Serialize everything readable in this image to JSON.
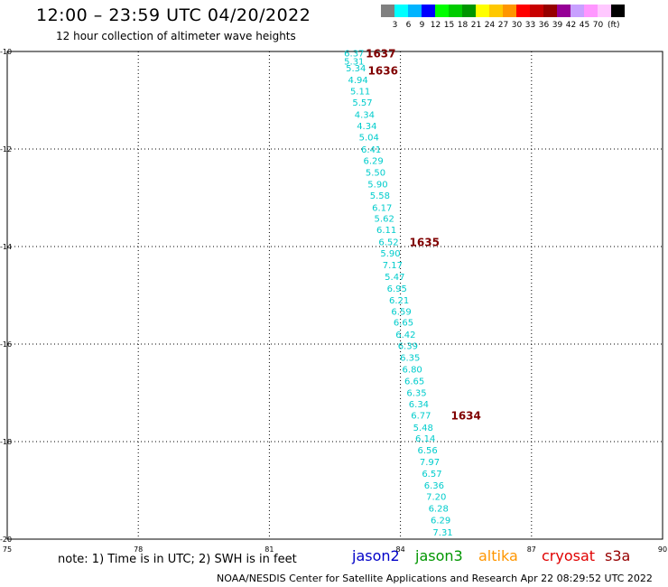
{
  "title": "12:00 – 23:59 UTC 04/20/2022",
  "subtitle": "12 hour collection of altimeter wave heights",
  "legend": {
    "colors": [
      "#808080",
      "#00ffff",
      "#00b4ff",
      "#0000ff",
      "#00ff00",
      "#00cc00",
      "#009600",
      "#ffff00",
      "#ffc800",
      "#ff9600",
      "#ff0000",
      "#c80000",
      "#960000",
      "#960096",
      "#c8a0ff",
      "#ff96ff",
      "#ffc8ff",
      "#000000"
    ],
    "labels": [
      "3",
      "6",
      "9",
      "12",
      "15",
      "18",
      "21",
      "24",
      "27",
      "30",
      "33",
      "36",
      "39",
      "42",
      "45",
      "70"
    ],
    "unit": "(ft)"
  },
  "axes": {
    "lat_labels": [
      "-10",
      "-12",
      "-14",
      "-16",
      "-18",
      "-20"
    ],
    "lon_labels": [
      "75",
      "78",
      "81",
      "84",
      "87",
      "90"
    ]
  },
  "chart_data": {
    "type": "map",
    "lon_range": [
      75,
      90
    ],
    "lat_range": [
      -20,
      -10
    ],
    "grid": true,
    "value_color": "#00cccc",
    "time_color": "#800000",
    "swh_points": [
      {
        "lat": -10.03,
        "lon": 82.94,
        "v": "6.37"
      },
      {
        "lat": -10.19,
        "lon": 82.94,
        "v": "5.31"
      },
      {
        "lat": -10.33,
        "lon": 82.98,
        "v": "5.34"
      },
      {
        "lat": -10.57,
        "lon": 83.03,
        "v": "4.94"
      },
      {
        "lat": -10.81,
        "lon": 83.08,
        "v": "5.11"
      },
      {
        "lat": -11.04,
        "lon": 83.13,
        "v": "5.57"
      },
      {
        "lat": -11.29,
        "lon": 83.18,
        "v": "4.34"
      },
      {
        "lat": -11.52,
        "lon": 83.23,
        "v": "4.34"
      },
      {
        "lat": -11.75,
        "lon": 83.28,
        "v": "5.04"
      },
      {
        "lat": -12.0,
        "lon": 83.33,
        "v": "6.41"
      },
      {
        "lat": -12.23,
        "lon": 83.38,
        "v": "6.29"
      },
      {
        "lat": -12.47,
        "lon": 83.43,
        "v": "5.50"
      },
      {
        "lat": -12.71,
        "lon": 83.48,
        "v": "5.90"
      },
      {
        "lat": -12.94,
        "lon": 83.53,
        "v": "5.58"
      },
      {
        "lat": -13.19,
        "lon": 83.58,
        "v": "6.17"
      },
      {
        "lat": -13.42,
        "lon": 83.63,
        "v": "5.62"
      },
      {
        "lat": -13.65,
        "lon": 83.68,
        "v": "6.11"
      },
      {
        "lat": -13.9,
        "lon": 83.73,
        "v": "6.52"
      },
      {
        "lat": -14.13,
        "lon": 83.77,
        "v": "5.90"
      },
      {
        "lat": -14.37,
        "lon": 83.82,
        "v": "7.17"
      },
      {
        "lat": -14.61,
        "lon": 83.87,
        "v": "5.47"
      },
      {
        "lat": -14.85,
        "lon": 83.92,
        "v": "6.95"
      },
      {
        "lat": -15.09,
        "lon": 83.97,
        "v": "6.21"
      },
      {
        "lat": -15.32,
        "lon": 84.02,
        "v": "6.59"
      },
      {
        "lat": -15.55,
        "lon": 84.07,
        "v": "6.65"
      },
      {
        "lat": -15.8,
        "lon": 84.12,
        "v": "6.42"
      },
      {
        "lat": -16.03,
        "lon": 84.17,
        "v": "6.39"
      },
      {
        "lat": -16.27,
        "lon": 84.22,
        "v": "6.35"
      },
      {
        "lat": -16.51,
        "lon": 84.27,
        "v": "6.80"
      },
      {
        "lat": -16.75,
        "lon": 84.32,
        "v": "6.65"
      },
      {
        "lat": -16.99,
        "lon": 84.37,
        "v": "6.35"
      },
      {
        "lat": -17.22,
        "lon": 84.42,
        "v": "6.34"
      },
      {
        "lat": -17.45,
        "lon": 84.47,
        "v": "6.77"
      },
      {
        "lat": -17.7,
        "lon": 84.52,
        "v": "5.48"
      },
      {
        "lat": -17.93,
        "lon": 84.57,
        "v": "6.14"
      },
      {
        "lat": -18.17,
        "lon": 84.62,
        "v": "6.56"
      },
      {
        "lat": -18.41,
        "lon": 84.67,
        "v": "7.97"
      },
      {
        "lat": -18.65,
        "lon": 84.72,
        "v": "6.57"
      },
      {
        "lat": -18.89,
        "lon": 84.77,
        "v": "6.36"
      },
      {
        "lat": -19.12,
        "lon": 84.82,
        "v": "7.20"
      },
      {
        "lat": -19.36,
        "lon": 84.87,
        "v": "6.28"
      },
      {
        "lat": -19.6,
        "lon": 84.92,
        "v": "6.29"
      },
      {
        "lat": -19.85,
        "lon": 84.97,
        "v": "7.31"
      }
    ],
    "time_labels": [
      {
        "lat": -10.03,
        "lon": 83.55,
        "t": "1637"
      },
      {
        "lat": -10.38,
        "lon": 83.6,
        "t": "1636"
      },
      {
        "lat": -13.9,
        "lon": 84.55,
        "t": "1635"
      },
      {
        "lat": -17.45,
        "lon": 85.5,
        "t": "1634"
      }
    ]
  },
  "note": "note: 1) Time is in UTC; 2) SWH is in feet",
  "satellites": [
    {
      "name": "jason2",
      "color": "#0000c8"
    },
    {
      "name": "jason3",
      "color": "#009600"
    },
    {
      "name": "altika",
      "color": "#ff9600"
    },
    {
      "name": "cryosat",
      "color": "#e00000"
    },
    {
      "name": "s3a",
      "color": "#960000"
    }
  ],
  "footer": "NOAA/NESDIS Center for Satellite Applications and Research   Apr 22 08:29:52 UTC 2022"
}
